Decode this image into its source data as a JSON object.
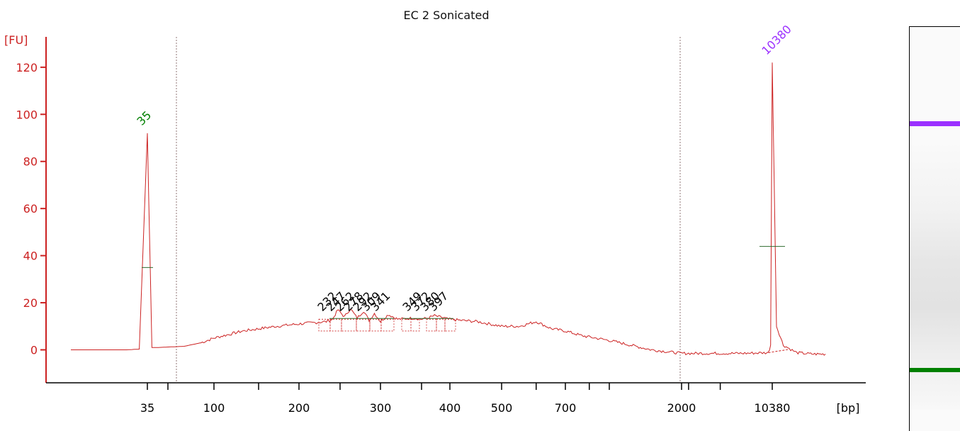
{
  "chart_data": {
    "type": "line",
    "title": "EC 2 Sonicated",
    "ylabel": "[FU]",
    "xlabel": "[bp]",
    "ylim": [
      -14,
      132
    ],
    "y_ticks": [
      0,
      20,
      40,
      60,
      80,
      100,
      120
    ],
    "y_tick_labels": [
      "0",
      "20",
      "40",
      "60",
      "80",
      "100",
      "120"
    ],
    "x_tick_labels": [
      "35",
      "100",
      "200",
      "300",
      "400",
      "500",
      "700",
      "2000",
      "10380"
    ],
    "markers": [
      {
        "label": "35",
        "bp": 35,
        "height": 92,
        "color": "#008000"
      },
      {
        "label": "10380",
        "bp": 10380,
        "height": 122,
        "color": "#9b30ff"
      }
    ],
    "peak_labels": [
      "232",
      "247",
      "262",
      "278",
      "292",
      "309",
      "341",
      "349",
      "372",
      "380",
      "397"
    ],
    "series": [
      {
        "color": "#cc2222",
        "bp": [
          20,
          30,
          33,
          35,
          37,
          40,
          60,
          80,
          100,
          130,
          170,
          200,
          232,
          240,
          247,
          255,
          262,
          270,
          278,
          285,
          292,
          300,
          309,
          320,
          341,
          349,
          360,
          372,
          380,
          390,
          397,
          420,
          450,
          500,
          550,
          600,
          650,
          700,
          800,
          1000,
          1500,
          2000,
          5000,
          8000,
          9500,
          10000,
          10380,
          10800,
          11500,
          13000,
          15000,
          17000
        ],
        "fu": [
          0,
          0,
          0.3,
          92,
          1,
          1,
          1.5,
          3,
          5,
          8,
          10,
          11,
          12,
          13,
          17,
          14,
          17.5,
          13.5,
          16.5,
          12.5,
          15.5,
          12,
          15,
          13,
          13.5,
          13,
          13.5,
          14.5,
          14,
          13.5,
          13,
          12.5,
          12,
          10,
          10,
          12,
          9,
          8,
          6,
          4,
          0,
          -1.5,
          -1.5,
          -1.3,
          -1.2,
          2,
          122,
          10,
          2,
          -1.2,
          -1.8,
          -1.8
        ]
      }
    ],
    "grid": false,
    "reference_bands": [
      {
        "color": "#9b30ff",
        "strength": 1
      },
      {
        "color": "#008000",
        "strength": 1
      }
    ]
  }
}
